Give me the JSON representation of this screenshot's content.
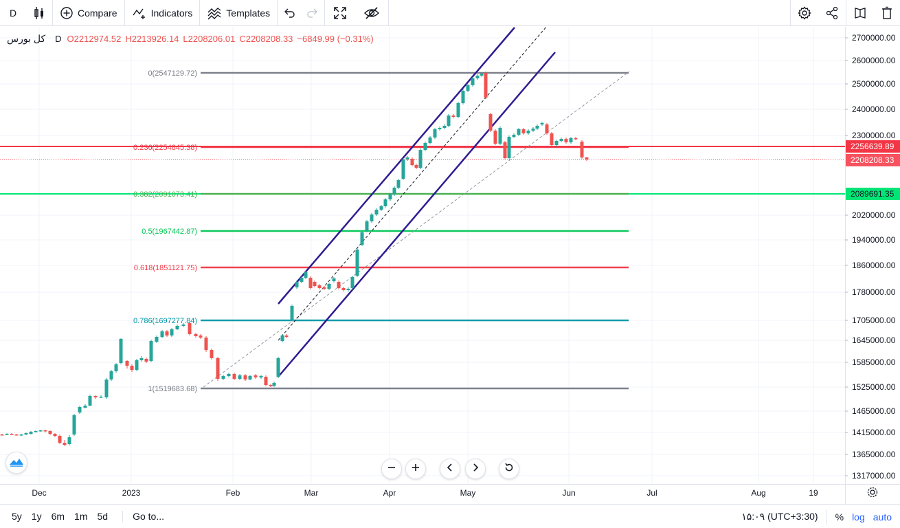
{
  "toolbar": {
    "symbol_short": "D",
    "compare_label": "Compare",
    "indicators_label": "Indicators",
    "templates_label": "Templates"
  },
  "legend": {
    "symbol": "کل بورس",
    "timeframe": "D",
    "open": "O2212974.52",
    "high": "H2213926.14",
    "low": "L2208206.01",
    "close": "C2208208.33",
    "change": "−6849.99 (−0.31%)"
  },
  "price_axis": {
    "ticks": [
      "2700000.00",
      "2600000.00",
      "2500000.00",
      "2400000.00",
      "2300000.00",
      "2020000.00",
      "1940000.00",
      "1860000.00",
      "1780000.00",
      "1705000.00",
      "1645000.00",
      "1585000.00",
      "1525000.00",
      "1465000.00",
      "1415000.00",
      "1365000.00",
      "1317000.00"
    ],
    "tags": [
      {
        "value": "2256639.89",
        "color": "#f23645"
      },
      {
        "value": "2208208.33",
        "color": "#f7525f"
      },
      {
        "value": "2089691.35",
        "color": "#00e676"
      }
    ]
  },
  "time_axis": {
    "ticks": [
      "Dec",
      "2023",
      "Feb",
      "Mar",
      "Apr",
      "May",
      "Jun",
      "Jul",
      "Aug",
      "19"
    ]
  },
  "fib": {
    "levels": [
      {
        "label": "0(2547129.72)",
        "color": "#787b86"
      },
      {
        "label": "0.236(2254845.38)",
        "color": "#f23645"
      },
      {
        "label": "0.382(2091073.41)",
        "color": "#4caf50"
      },
      {
        "label": "0.5(1967442.87)",
        "color": "#00c853"
      },
      {
        "label": "0.618(1851121.75)",
        "color": "#f23645"
      },
      {
        "label": "0.786(1697277.84)",
        "color": "#0097a7"
      },
      {
        "label": "1(1519683.68)",
        "color": "#787b86"
      }
    ]
  },
  "colors": {
    "up": "#26a69a",
    "down": "#ef5350",
    "channel": "#311b92",
    "grid": "#f0f3fa"
  },
  "bottom": {
    "ranges": [
      "5y",
      "1y",
      "6m",
      "1m",
      "5d"
    ],
    "goto": "Go to...",
    "clock": "۱۵:۰۹ (UTC+3:30)",
    "percent": "%",
    "log": "log",
    "auto": "auto"
  },
  "icons": {
    "compare": "plus-circle-icon",
    "indicators": "indicators-icon",
    "templates": "templates-icon",
    "undo": "undo-icon",
    "redo": "redo-icon",
    "fullscreen": "fullscreen-icon",
    "hide": "eye-off-icon",
    "settings": "gear-icon",
    "share": "share-icon",
    "snapshot": "snapshot-icon",
    "delete": "trash-icon"
  }
}
